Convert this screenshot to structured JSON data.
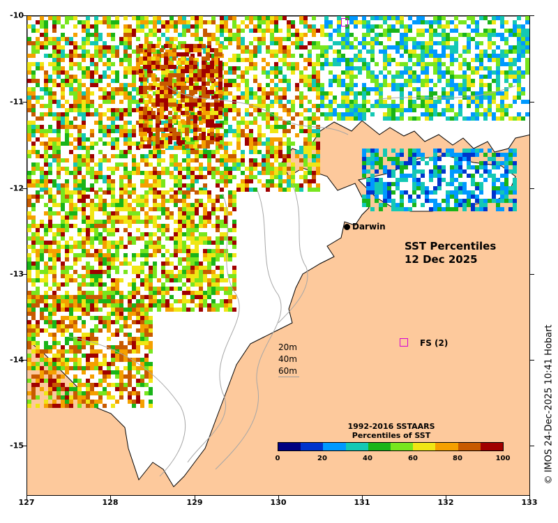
{
  "map": {
    "title_line1": "SST Percentiles",
    "title_line2": "12 Dec 2025",
    "place_label": "Darwin",
    "station_label": "FS (2)"
  },
  "axes": {
    "y_ticks": [
      "-10",
      "-11",
      "-12",
      "-13",
      "-14",
      "-15"
    ],
    "x_ticks": [
      "127",
      "128",
      "129",
      "130",
      "131",
      "132",
      "133"
    ]
  },
  "depth_legend": [
    "20m",
    "40m",
    "60m"
  ],
  "color_legend": {
    "title_line1": "1992-2016 SSTAARS",
    "title_line2": "Percentiles of SST",
    "ticks": [
      "0",
      "20",
      "40",
      "60",
      "80",
      "100"
    ],
    "colors": [
      "#000080",
      "#0033cc",
      "#0099ff",
      "#14c8b4",
      "#19b419",
      "#78e61e",
      "#f0e614",
      "#f5a000",
      "#c85a00",
      "#a00000"
    ]
  },
  "colors": {
    "land": "#fdc99c",
    "station_marker": "#d400d4"
  },
  "footer": {
    "copyright": "© IMOS 24-Dec-2025 10:41 Hobart"
  }
}
